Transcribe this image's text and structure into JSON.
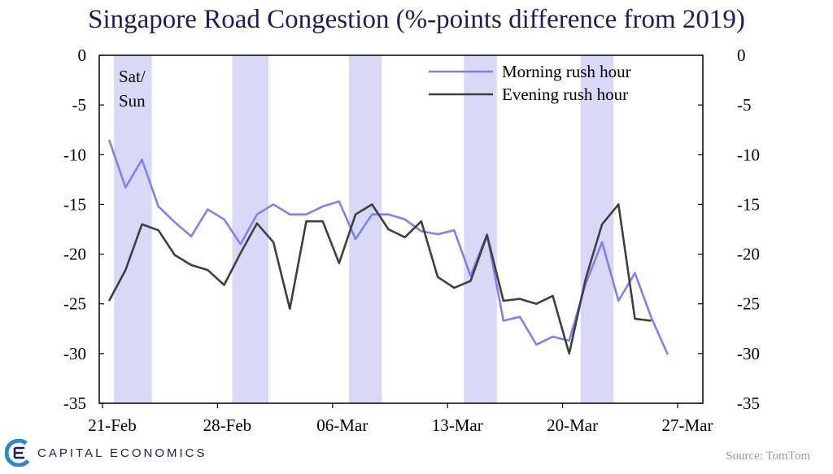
{
  "chart_data": {
    "type": "line",
    "title": "Singapore Road Congestion (%-points difference from 2019)",
    "xlabel": "",
    "ylabel": "",
    "ylim": [
      -35,
      0
    ],
    "yticks": [
      0,
      -5,
      -10,
      -15,
      -20,
      -25,
      -30,
      -35
    ],
    "xlim": [
      0,
      35
    ],
    "xticks": [
      {
        "value": 0,
        "label": "21-Feb"
      },
      {
        "value": 7,
        "label": "28-Feb"
      },
      {
        "value": 14,
        "label": "06-Mar"
      },
      {
        "value": 21,
        "label": "13-Mar"
      },
      {
        "value": 28,
        "label": "20-Mar"
      },
      {
        "value": 35,
        "label": "27-Mar"
      }
    ],
    "weekend_bands": [
      [
        0.7,
        3.0
      ],
      [
        7.9,
        10.1
      ],
      [
        15.0,
        17.0
      ],
      [
        22.0,
        24.0
      ],
      [
        29.1,
        31.1
      ]
    ],
    "weekend_label": [
      "Sat/",
      "Sun"
    ],
    "series": [
      {
        "name": "Morning rush hour",
        "color": "#8080f0",
        "x": [
          0.4,
          1.4,
          2.4,
          3.4,
          4.4,
          5.4,
          6.4,
          7.4,
          8.4,
          9.4,
          10.4,
          11.4,
          12.4,
          13.4,
          14.4,
          15.4,
          16.4,
          17.4,
          18.4,
          19.4,
          20.4,
          21.4,
          22.4,
          23.4,
          24.4,
          25.4,
          26.4,
          27.4,
          28.4,
          29.4,
          30.4,
          31.4,
          32.4,
          33.4,
          34.4
        ],
        "values": [
          -8.5,
          -13.3,
          -10.5,
          -15.2,
          -16.8,
          -18.2,
          -15.5,
          -16.5,
          -19,
          -16,
          -15,
          -16,
          -16,
          -15.2,
          -14.7,
          -18.5,
          -16,
          -16,
          -16.5,
          -17.7,
          -18.0,
          -17.6,
          -22.2,
          -18.0,
          -26.7,
          -26.3,
          -29.1,
          -28.3,
          -28.7,
          -23.0,
          -18.8,
          -24.7,
          -21.9,
          -26.4,
          -30.1
        ]
      },
      {
        "name": "Evening rush hour",
        "color": "#3f3f3f",
        "x": [
          0.4,
          1.4,
          2.4,
          3.4,
          4.4,
          5.4,
          6.4,
          7.4,
          8.4,
          9.4,
          10.4,
          11.4,
          12.4,
          13.4,
          14.4,
          15.4,
          16.4,
          17.4,
          18.4,
          19.4,
          20.4,
          21.4,
          22.4,
          23.4,
          24.4,
          25.4,
          26.4,
          27.4,
          28.4,
          29.4,
          30.4,
          31.4,
          32.4,
          33.4
        ],
        "values": [
          -24.7,
          -21.6,
          -17.0,
          -17.6,
          -20.1,
          -21.1,
          -21.6,
          -23.1,
          -19.9,
          -16.9,
          -18.8,
          -25.5,
          -16.7,
          -16.7,
          -20.9,
          -16.0,
          -15.0,
          -17.5,
          -18.3,
          -16.7,
          -22.3,
          -23.4,
          -22.7,
          -18.1,
          -24.7,
          -24.5,
          -25.0,
          -24.2,
          -30.0,
          -22.5,
          -17.0,
          -15.0,
          -26.5,
          -26.7
        ]
      }
    ]
  },
  "source": "Source: TomTom",
  "logo": {
    "text": "CAPITAL ECONOMICS"
  }
}
